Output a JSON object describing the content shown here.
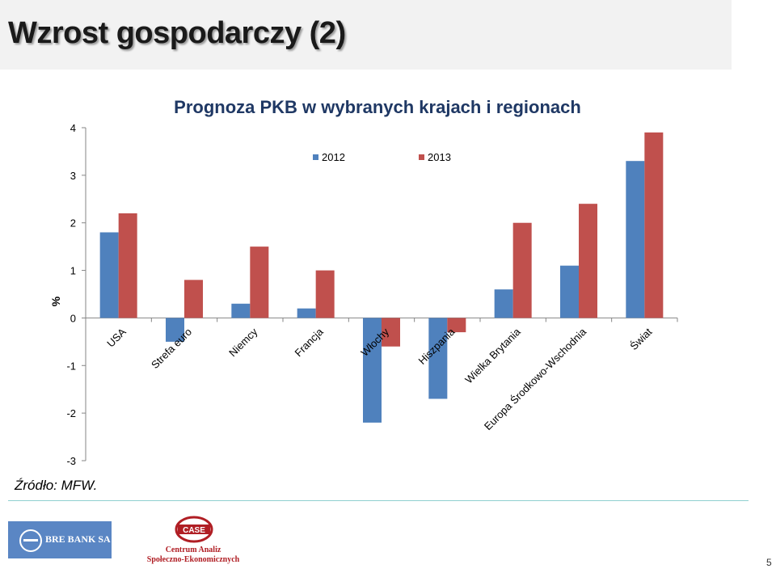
{
  "slide": {
    "title": "Wzrost gospodarczy (2)",
    "source": "Źródło: MFW.",
    "page_number": "5"
  },
  "logos": {
    "bre_bank": "BRE BANK SA",
    "case_mark": "CASE",
    "case_line1": "Centrum Analiz",
    "case_line2": "Społeczno-Ekonomicznych"
  },
  "colors": {
    "series_2012": "#4f81bd",
    "series_2013": "#c0504d",
    "bre_blue": "#5a86c4",
    "case_red": "#b01e24"
  },
  "chart_data": {
    "type": "bar",
    "title": "Prognoza PKB w wybranych krajach i regionach",
    "ylabel": "%",
    "xlabel": "",
    "ylim": [
      -3,
      4
    ],
    "yticks": [
      "4",
      "3",
      "2",
      "1",
      "0",
      "-1",
      "-2",
      "-3"
    ],
    "categories": [
      "USA",
      "Strefa euro",
      "Niemcy",
      "Francja",
      "Włochy",
      "Hiszpania",
      "Wielka Brytania",
      "Europa Środkowo-Wschodnia",
      "Świat"
    ],
    "series": [
      {
        "name": "2012",
        "values": [
          1.8,
          -0.5,
          0.3,
          0.2,
          -2.2,
          -1.7,
          0.6,
          1.1,
          3.3
        ]
      },
      {
        "name": "2013",
        "values": [
          2.2,
          0.8,
          1.5,
          1.0,
          -0.6,
          -0.3,
          2.0,
          2.4,
          3.9
        ]
      }
    ],
    "legend_position": "top",
    "grid": false
  }
}
